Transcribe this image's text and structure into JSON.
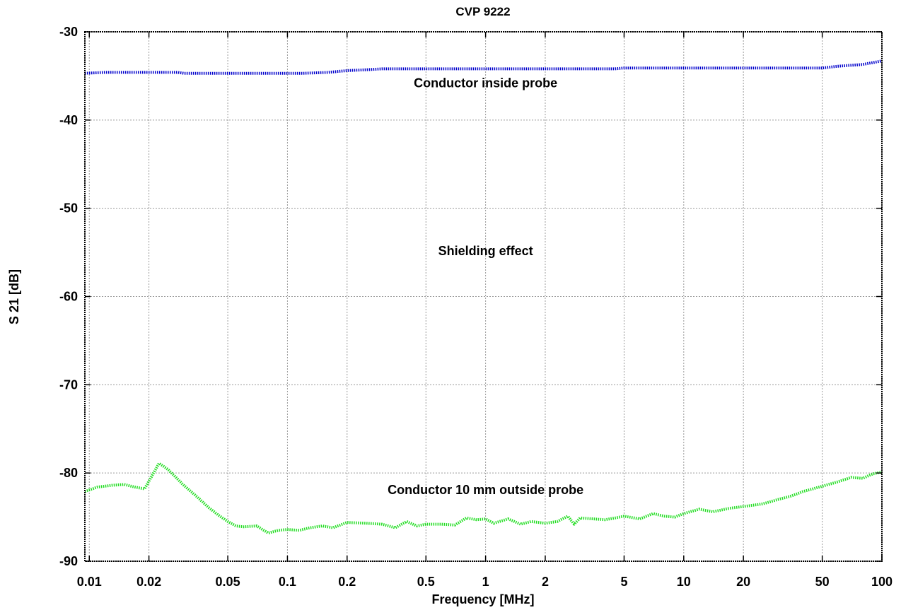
{
  "chart_data": {
    "type": "line",
    "title": "CVP 9222",
    "xlabel": "Frequency [MHz]",
    "ylabel": "S 21 [dB]",
    "x_scale": "log",
    "xlim": [
      0.0095,
      100
    ],
    "ylim": [
      -90,
      -30
    ],
    "x_ticks": [
      0.01,
      0.02,
      0.05,
      0.1,
      0.2,
      0.5,
      1,
      2,
      5,
      10,
      20,
      50,
      100
    ],
    "x_tick_labels": [
      "0.01",
      "0.02",
      "0.05",
      "0.1",
      "0.2",
      "0.5",
      "1",
      "2",
      "5",
      "10",
      "20",
      "50",
      "100"
    ],
    "y_ticks": [
      -30,
      -40,
      -50,
      -60,
      -70,
      -80,
      -90
    ],
    "y_tick_labels": [
      "-30",
      "-40",
      "-50",
      "-60",
      "-70",
      "-80",
      "-90"
    ],
    "grid": true,
    "series": [
      {
        "color": "#0000cc",
        "x": [
          0.0095,
          0.012,
          0.015,
          0.02,
          0.028,
          0.03,
          0.05,
          0.08,
          0.12,
          0.16,
          0.2,
          0.25,
          0.3,
          0.5,
          1,
          2,
          4.5,
          5,
          10,
          20,
          50,
          60,
          80,
          100
        ],
        "y": [
          -34.7,
          -34.6,
          -34.6,
          -34.6,
          -34.6,
          -34.7,
          -34.7,
          -34.7,
          -34.7,
          -34.6,
          -34.4,
          -34.3,
          -34.2,
          -34.2,
          -34.2,
          -34.2,
          -34.2,
          -34.1,
          -34.1,
          -34.1,
          -34.1,
          -33.9,
          -33.7,
          -33.3
        ]
      },
      {
        "color": "#22dd22",
        "x": [
          0.0095,
          0.011,
          0.013,
          0.015,
          0.017,
          0.019,
          0.0205,
          0.0225,
          0.025,
          0.03,
          0.035,
          0.04,
          0.045,
          0.05,
          0.055,
          0.06,
          0.07,
          0.08,
          0.09,
          0.1,
          0.115,
          0.13,
          0.15,
          0.17,
          0.2,
          0.25,
          0.3,
          0.35,
          0.4,
          0.45,
          0.5,
          0.6,
          0.7,
          0.8,
          0.9,
          1.0,
          1.1,
          1.3,
          1.5,
          1.7,
          2.0,
          2.3,
          2.6,
          2.8,
          3.0,
          3.5,
          4.0,
          4.5,
          5.0,
          6.0,
          7.0,
          8.0,
          9.0,
          10,
          12,
          14,
          17,
          20,
          25,
          30,
          35,
          40,
          50,
          60,
          70,
          80,
          90,
          100
        ],
        "y": [
          -82.1,
          -81.6,
          -81.4,
          -81.3,
          -81.6,
          -81.8,
          -80.5,
          -78.9,
          -79.6,
          -81.4,
          -82.7,
          -83.9,
          -84.8,
          -85.5,
          -86.0,
          -86.1,
          -86.0,
          -86.8,
          -86.5,
          -86.4,
          -86.5,
          -86.2,
          -86.0,
          -86.2,
          -85.6,
          -85.7,
          -85.8,
          -86.2,
          -85.5,
          -86.0,
          -85.8,
          -85.8,
          -85.9,
          -85.1,
          -85.3,
          -85.2,
          -85.7,
          -85.2,
          -85.8,
          -85.5,
          -85.7,
          -85.5,
          -84.9,
          -85.8,
          -85.1,
          -85.2,
          -85.3,
          -85.1,
          -84.9,
          -85.2,
          -84.6,
          -84.9,
          -85.0,
          -84.6,
          -84.1,
          -84.4,
          -84.0,
          -83.8,
          -83.5,
          -83.0,
          -82.6,
          -82.1,
          -81.5,
          -81.0,
          -80.5,
          -80.6,
          -80.1,
          -79.9
        ]
      }
    ],
    "annotations": [
      {
        "text": "Conductor inside probe",
        "x": 1.0,
        "y": -36.3
      },
      {
        "text": "Shielding effect",
        "x": 1.0,
        "y": -55.3
      },
      {
        "text": "Conductor 10 mm outside probe",
        "x": 1.0,
        "y": -82.4
      }
    ]
  }
}
